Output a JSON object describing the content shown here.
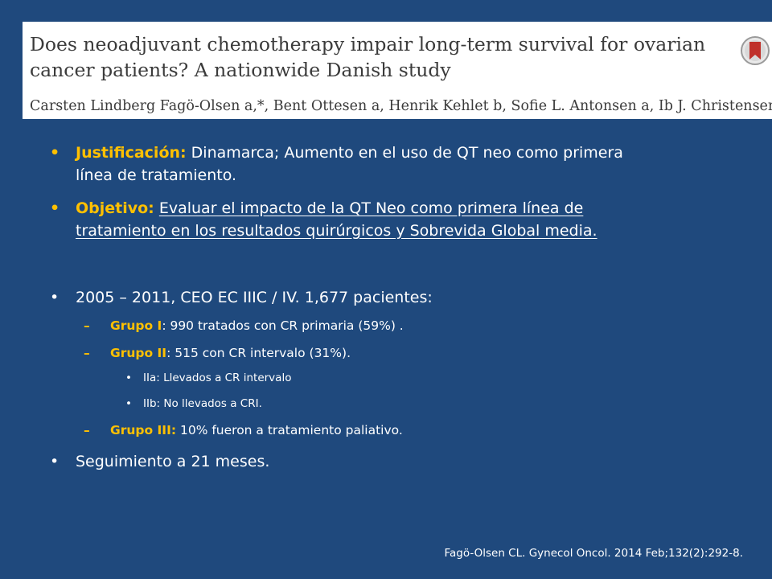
{
  "header": {
    "title_line1": "Does neoadjuvant chemotherapy impair long-term survival for ovarian",
    "title_line2": "cancer patients? A nationwide Danish study",
    "authors": "Carsten Lindberg Fagö-Olsen a,*, Bent Ottesen a, Henrik Kehlet b, Sofie L. Antonsen a, Ib J. Christensen c,",
    "logo_icon": "crossmark-bookmark-icon"
  },
  "bullets": {
    "justificacion_label": "Justificación:",
    "justificacion_text_1": " Dinamarca; Aumento en el uso de QT neo como primera",
    "justificacion_text_2": "línea de tratamiento.",
    "objetivo_label": "Objetivo:",
    "objetivo_text_1": "Evaluar el impacto de la QT Neo como primera línea de",
    "objetivo_text_2": "tratamiento en los resultados quirúrgicos y Sobrevida Global media.",
    "study_line": "2005 – 2011, CEO EC IIIC / IV. 1,677 pacientes:",
    "grupo1_label": "Grupo I",
    "grupo1_text": ": 990 tratados con CR primaria (59%) .",
    "grupo2_label": "Grupo II",
    "grupo2_text": ": 515 con CR intervalo (31%).",
    "iia_text": "IIa: Llevados a CR intervalo",
    "iib_text": "IIb: No llevados a CRI.",
    "grupo3_label": "Grupo III:",
    "grupo3_text": " 10% fueron a tratamiento paliativo.",
    "seguimiento": "Seguimiento a 21 meses."
  },
  "citation": "Fagö-Olsen CL. Gynecol Oncol. 2014 Feb;132(2):292-8.",
  "colors": {
    "background": "#1f497d",
    "accent": "#ffc000",
    "text": "#ffffff"
  }
}
